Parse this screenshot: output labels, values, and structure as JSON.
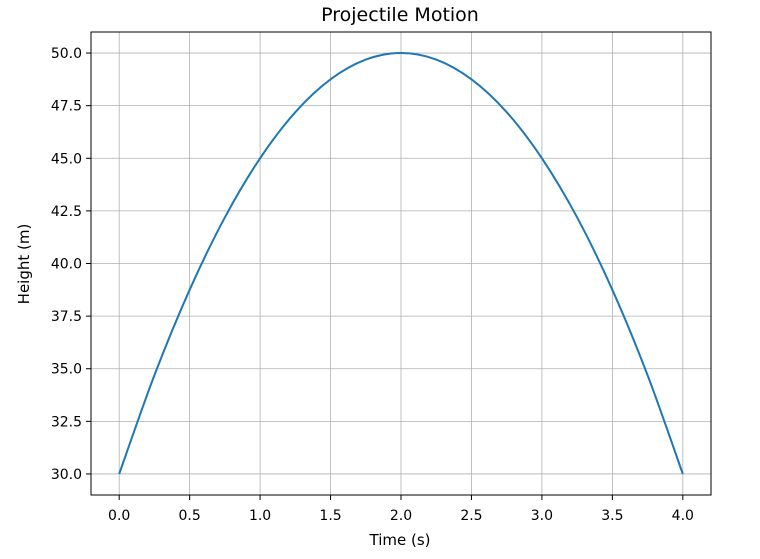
{
  "chart_data": {
    "type": "line",
    "title": "Projectile Motion",
    "xlabel": "Time (s)",
    "ylabel": "Height (m)",
    "xlim": [
      -0.2,
      4.2
    ],
    "ylim": [
      29.0,
      51.0
    ],
    "xticks": [
      0.0,
      0.5,
      1.0,
      1.5,
      2.0,
      2.5,
      3.0,
      3.5,
      4.0
    ],
    "xtick_labels": [
      "0.0",
      "0.5",
      "1.0",
      "1.5",
      "2.0",
      "2.5",
      "3.0",
      "3.5",
      "4.0"
    ],
    "yticks": [
      30.0,
      32.5,
      35.0,
      37.5,
      40.0,
      42.5,
      45.0,
      47.5,
      50.0
    ],
    "ytick_labels": [
      "30.0",
      "32.5",
      "35.0",
      "37.5",
      "40.0",
      "42.5",
      "45.0",
      "47.5",
      "50.0"
    ],
    "grid": true,
    "legend": false,
    "series": [
      {
        "color": "#1f77b4",
        "x": [
          0.0,
          0.25,
          0.5,
          0.75,
          1.0,
          1.25,
          1.5,
          1.75,
          2.0,
          2.25,
          2.5,
          2.75,
          3.0,
          3.25,
          3.5,
          3.75,
          4.0
        ],
        "y": [
          30.0,
          34.69,
          38.75,
          42.19,
          45.0,
          47.19,
          48.75,
          49.69,
          50.0,
          49.69,
          48.75,
          47.19,
          45.0,
          42.19,
          38.75,
          34.69,
          30.0
        ]
      }
    ]
  }
}
